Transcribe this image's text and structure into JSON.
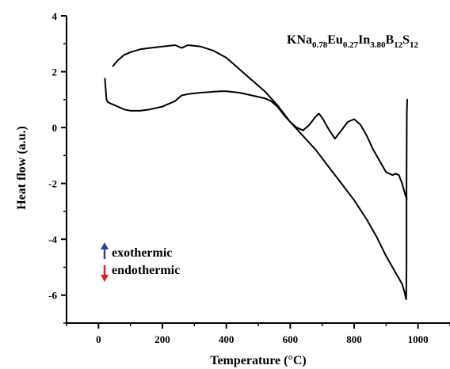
{
  "chart_data": {
    "type": "line",
    "title": "",
    "xlabel": "Temperature (°C)",
    "ylabel": "Heat flow (a.u.)",
    "xlim": [
      -100,
      1100
    ],
    "ylim": [
      -7,
      4
    ],
    "xticks": [
      0,
      200,
      400,
      600,
      800,
      1000
    ],
    "yticks": [
      -6,
      -4,
      -2,
      0,
      2,
      4
    ],
    "grid": false,
    "annotations": {
      "formula_parts": [
        {
          "t": "KNa",
          "sub": false
        },
        {
          "t": "0.78",
          "sub": true
        },
        {
          "t": "Eu",
          "sub": false
        },
        {
          "t": "0.27",
          "sub": true
        },
        {
          "t": "In",
          "sub": false
        },
        {
          "t": "3.80",
          "sub": true
        },
        {
          "t": "B",
          "sub": false
        },
        {
          "t": "12",
          "sub": true
        },
        {
          "t": "S",
          "sub": false
        },
        {
          "t": "12",
          "sub": true
        }
      ],
      "exothermic": {
        "label": "exothermic",
        "color": "#2e3f9e"
      },
      "endothermic": {
        "label": "endothermic",
        "color": "#e02020"
      }
    },
    "series": [
      {
        "color": "#000000",
        "x": [
          20,
          25,
          30,
          40,
          60,
          80,
          100,
          130,
          160,
          200,
          240,
          260,
          280,
          320,
          380,
          400,
          440,
          480,
          520,
          540,
          560,
          580,
          600,
          620,
          640,
          660,
          680,
          690,
          700,
          720,
          740,
          760,
          780,
          800,
          820,
          840,
          860,
          880,
          900,
          920,
          930,
          940,
          950,
          955,
          960,
          963,
          965
        ],
        "y": [
          1.75,
          1.0,
          0.9,
          0.85,
          0.75,
          0.65,
          0.6,
          0.6,
          0.65,
          0.75,
          0.95,
          1.15,
          1.2,
          1.25,
          1.3,
          1.3,
          1.25,
          1.15,
          1.05,
          0.95,
          0.75,
          0.45,
          0.2,
          0.0,
          -0.1,
          0.1,
          0.4,
          0.5,
          0.35,
          -0.05,
          -0.4,
          -0.1,
          0.2,
          0.3,
          0.1,
          -0.3,
          -0.8,
          -1.2,
          -1.6,
          -1.7,
          -1.65,
          -1.7,
          -2.0,
          -2.2,
          -2.4,
          -2.5,
          -2.55
        ]
      },
      {
        "color": "#000000",
        "x": [
          45,
          60,
          80,
          100,
          130,
          160,
          200,
          240,
          260,
          280,
          320,
          360,
          400,
          440,
          480,
          520,
          560,
          600,
          640,
          680,
          720,
          760,
          800,
          840,
          870,
          900,
          920,
          940,
          950,
          958,
          962,
          963,
          964,
          964,
          965,
          966
        ],
        "y": [
          2.2,
          2.4,
          2.6,
          2.7,
          2.8,
          2.85,
          2.9,
          2.95,
          2.85,
          2.95,
          2.9,
          2.75,
          2.5,
          2.1,
          1.7,
          1.3,
          0.8,
          0.2,
          -0.3,
          -0.8,
          -1.4,
          -2.0,
          -2.6,
          -3.3,
          -3.9,
          -4.6,
          -5.0,
          -5.4,
          -5.6,
          -5.9,
          -6.1,
          -6.15,
          -5.0,
          -2.0,
          0.5,
          1.0
        ]
      }
    ]
  }
}
